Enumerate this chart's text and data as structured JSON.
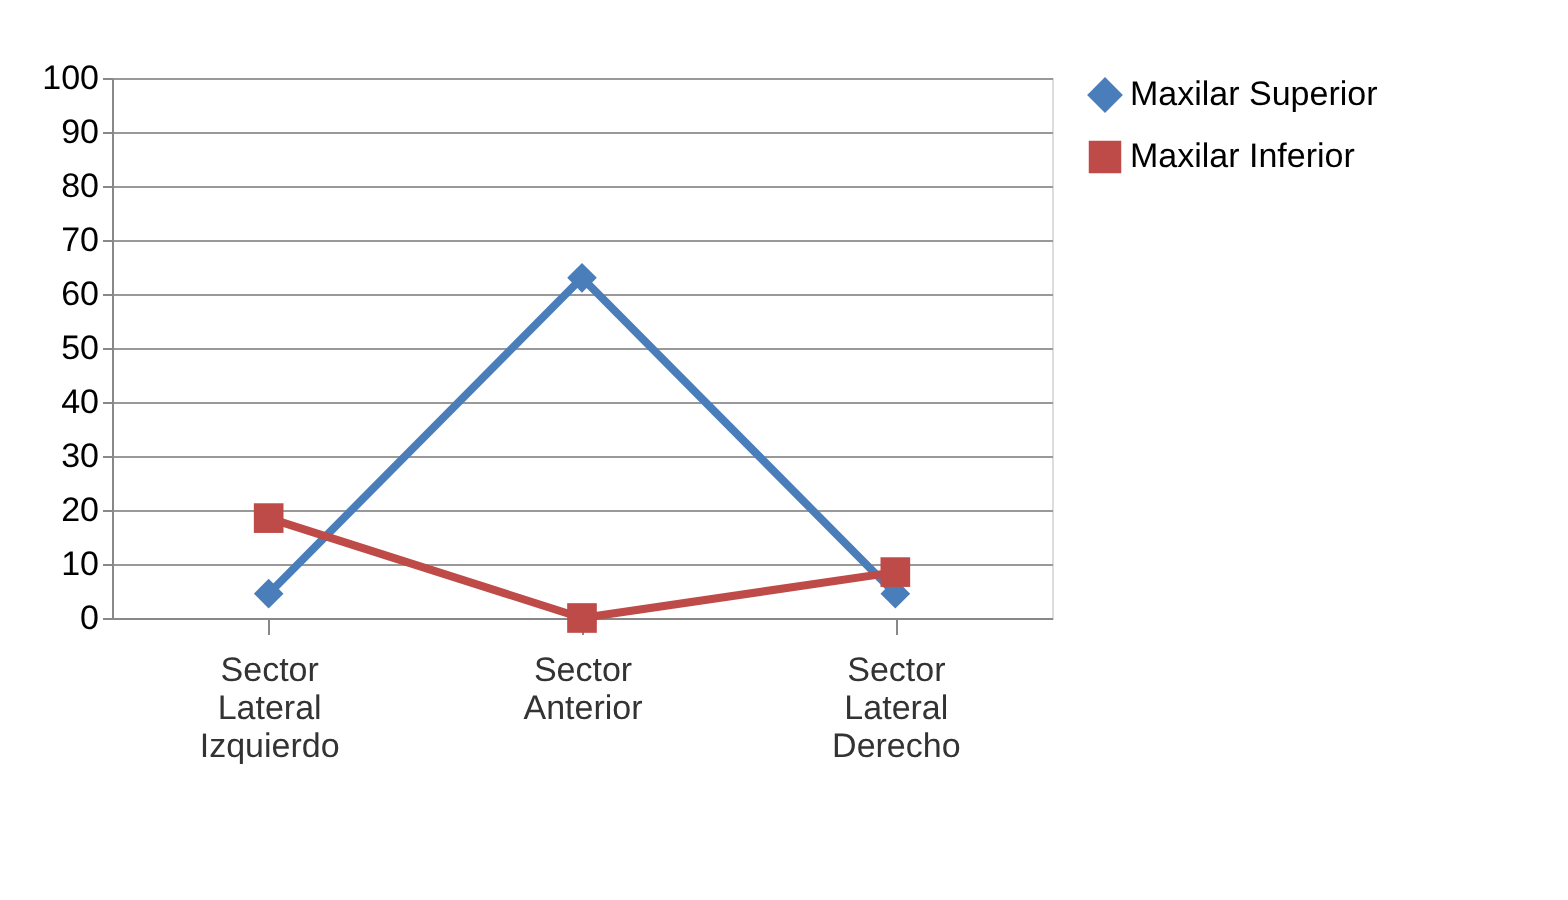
{
  "chart_data": {
    "type": "line",
    "categories": [
      "Sector Lateral Izquierdo",
      "Sector Anterior",
      "Sector Lateral Derecho"
    ],
    "series": [
      {
        "name": "Maxilar Superior",
        "color": "#4a7ebb",
        "marker": "diamond",
        "values": [
          4.5,
          63,
          4.5
        ]
      },
      {
        "name": "Maxilar Inferior",
        "color": "#be4b48",
        "marker": "square",
        "values": [
          18.5,
          0,
          8.5
        ]
      }
    ],
    "ylim": [
      0,
      100
    ],
    "yticks": [
      0,
      10,
      20,
      30,
      40,
      50,
      60,
      70,
      80,
      90,
      100
    ],
    "grid": "y",
    "legend": "right",
    "line_style": "solid"
  }
}
